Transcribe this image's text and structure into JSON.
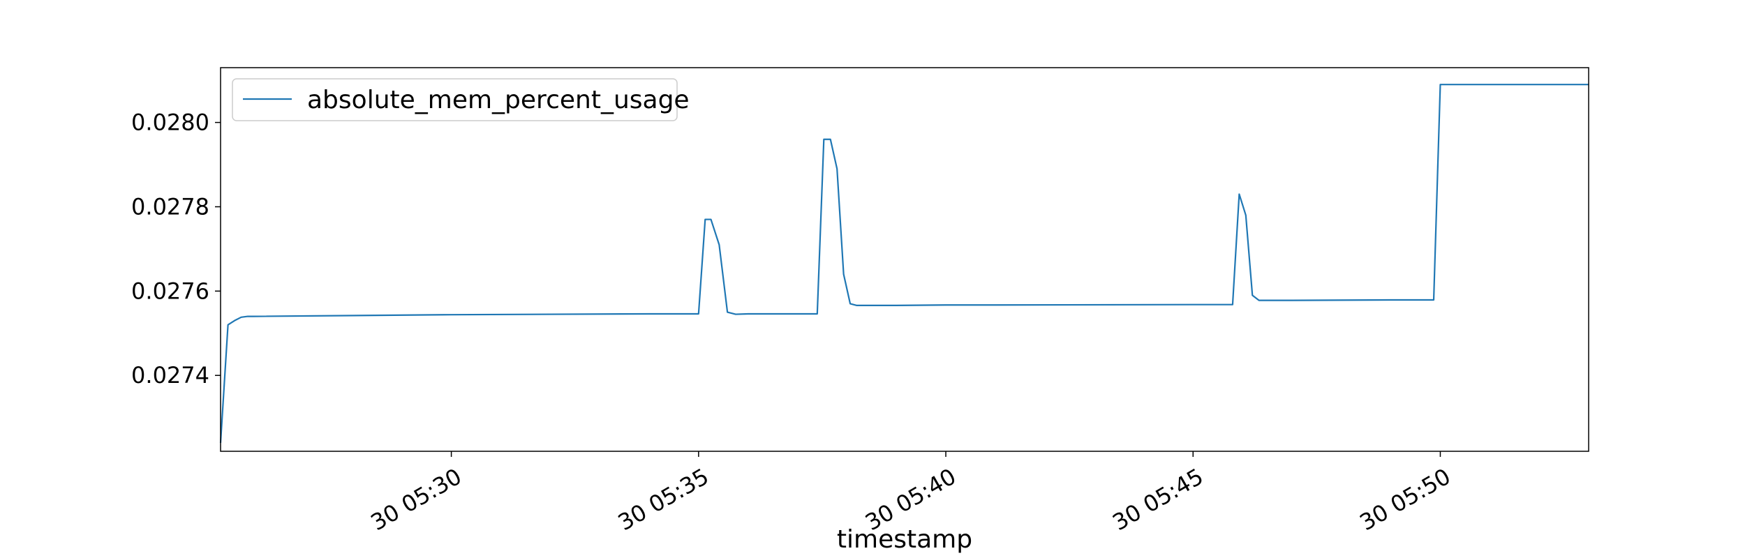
{
  "chart_data": {
    "type": "line",
    "title": "",
    "xlabel": "timestamp",
    "ylabel": "",
    "grid": false,
    "legend_position": "top-left",
    "xlim": [
      "30 05:25:20",
      "30 05:53:00"
    ],
    "ylim": [
      0.02722,
      0.02813
    ],
    "x_ticks": [
      {
        "value": "30 05:30:00",
        "label": "30 05:30"
      },
      {
        "value": "30 05:35:00",
        "label": "30 05:35"
      },
      {
        "value": "30 05:40:00",
        "label": "30 05:40"
      },
      {
        "value": "30 05:45:00",
        "label": "30 05:45"
      },
      {
        "value": "30 05:50:00",
        "label": "30 05:50"
      }
    ],
    "y_ticks": [
      {
        "value": 0.0274,
        "label": "0.0274"
      },
      {
        "value": 0.0276,
        "label": "0.0276"
      },
      {
        "value": 0.0278,
        "label": "0.0278"
      },
      {
        "value": 0.028,
        "label": "0.0280"
      }
    ],
    "series": [
      {
        "name": "absolute_mem_percent_usage",
        "color": "#1f77b4",
        "x": [
          "30 05:25:20",
          "30 05:25:29",
          "30 05:25:37",
          "30 05:25:45",
          "30 05:25:53",
          "30 05:26:00",
          "30 05:30:00",
          "30 05:32:00",
          "30 05:34:00",
          "30 05:35:00",
          "30 05:35:08",
          "30 05:35:15",
          "30 05:35:25",
          "30 05:35:35",
          "30 05:35:45",
          "30 05:36:00",
          "30 05:37:24",
          "30 05:37:32",
          "30 05:37:40",
          "30 05:37:48",
          "30 05:37:56",
          "30 05:38:04",
          "30 05:38:12",
          "30 05:38:30",
          "30 05:39:00",
          "30 05:40:00",
          "30 05:41:00",
          "30 05:45:00",
          "30 05:45:48",
          "30 05:45:56",
          "30 05:46:04",
          "30 05:46:12",
          "30 05:46:20",
          "30 05:46:30",
          "30 05:47:00",
          "30 05:49:00",
          "30 05:49:52",
          "30 05:50:00",
          "30 05:50:30",
          "30 05:53:00"
        ],
        "y": [
          0.02724,
          0.02752,
          0.02753,
          0.027538,
          0.02754,
          0.02754,
          0.027544,
          0.027545,
          0.027546,
          0.027546,
          0.02777,
          0.02777,
          0.02771,
          0.02755,
          0.027545,
          0.027546,
          0.027546,
          0.02796,
          0.02796,
          0.02789,
          0.02764,
          0.02757,
          0.027566,
          0.027566,
          0.027566,
          0.027567,
          0.027567,
          0.027568,
          0.027568,
          0.02783,
          0.02778,
          0.02759,
          0.027578,
          0.027578,
          0.027578,
          0.027579,
          0.027579,
          0.02809,
          0.02809,
          0.02809
        ]
      }
    ]
  }
}
